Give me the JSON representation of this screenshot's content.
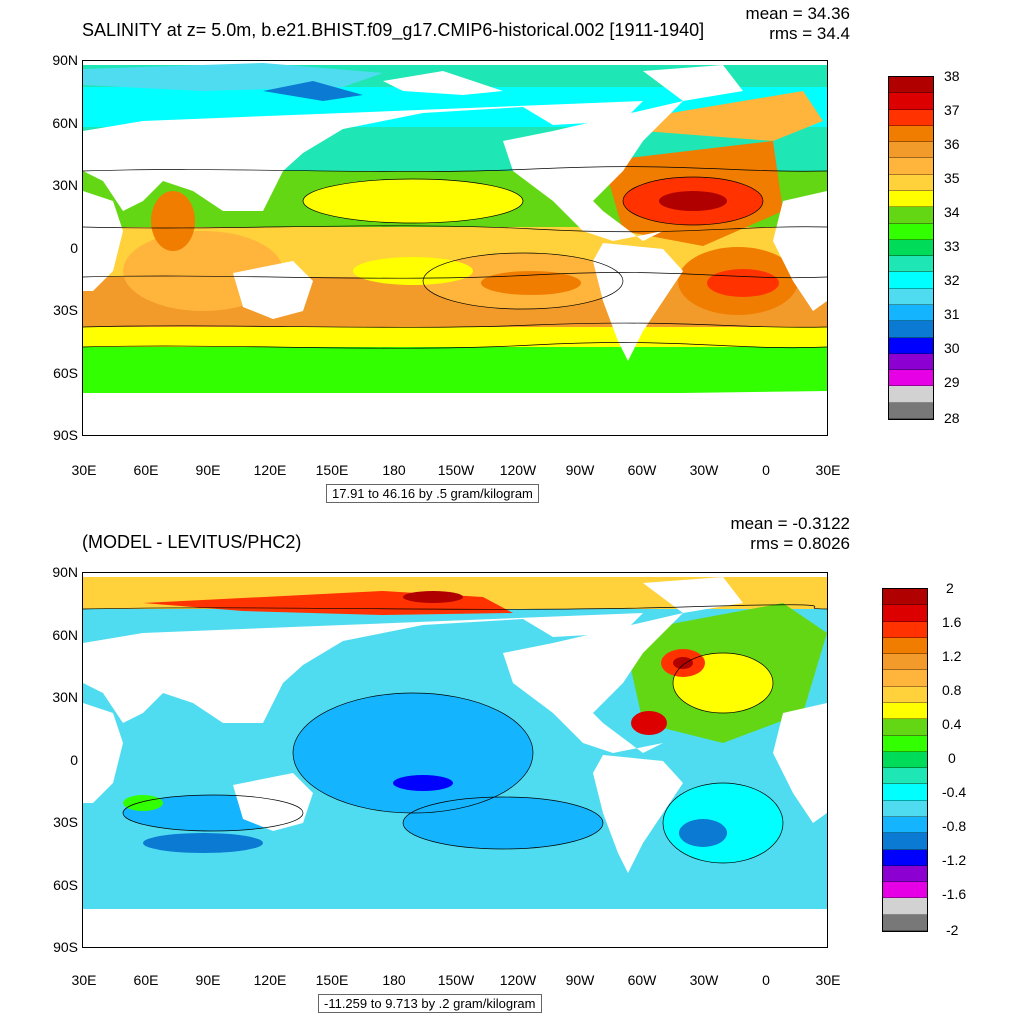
{
  "panels": [
    {
      "id": "top",
      "title": "SALINITY at z=   5.0m, b.e21.BHIST.f09_g17.CMIP6-historical.002 [1911-1940]",
      "stats": {
        "mean": "mean = 34.36",
        "rms": "rms = 34.4"
      },
      "info": "17.91 to 46.16 by .5 gram/kilogram",
      "y_ticks": [
        "90N",
        "60N",
        "30N",
        "0",
        "30S",
        "60S",
        "90S"
      ],
      "x_ticks": [
        "30E",
        "60E",
        "90E",
        "120E",
        "150E",
        "180",
        "150W",
        "120W",
        "90W",
        "60W",
        "30W",
        "0",
        "30E"
      ],
      "colorbar": {
        "labels": [
          "38",
          "37",
          "36",
          "35",
          "34",
          "33",
          "32",
          "31",
          "30",
          "29",
          "28"
        ],
        "colors": [
          "#b00000",
          "#dc0000",
          "#ff3200",
          "#f07d00",
          "#f29b2a",
          "#ffb43c",
          "#ffd23c",
          "#ffff00",
          "#64d714",
          "#32ff00",
          "#00dc5a",
          "#1ee6b4",
          "#00ffff",
          "#50dcf0",
          "#14b4ff",
          "#0a7ad2",
          "#0000ff",
          "#8c00d2",
          "#e600e6",
          "#d2d2d2",
          "#787878"
        ]
      }
    },
    {
      "id": "bottom",
      "title": "(MODEL - LEVITUS/PHC2)",
      "stats": {
        "mean": "mean = -0.3122",
        "rms": "rms = 0.8026"
      },
      "info": "-11.259 to 9.713 by .2 gram/kilogram",
      "y_ticks": [
        "90N",
        "60N",
        "30N",
        "0",
        "30S",
        "60S",
        "90S"
      ],
      "x_ticks": [
        "30E",
        "60E",
        "90E",
        "120E",
        "150E",
        "180",
        "150W",
        "120W",
        "90W",
        "60W",
        "30W",
        "0",
        "30E"
      ],
      "colorbar": {
        "labels": [
          "2",
          "1.6",
          "1.2",
          "0.8",
          "0.4",
          "0",
          "-0.4",
          "-0.8",
          "-1.2",
          "-1.6",
          "-2"
        ],
        "colors": [
          "#b00000",
          "#dc0000",
          "#ff3200",
          "#f07d00",
          "#f29b2a",
          "#ffb43c",
          "#ffd23c",
          "#ffff00",
          "#64d714",
          "#32ff00",
          "#00dc5a",
          "#1ee6b4",
          "#00ffff",
          "#50dcf0",
          "#14b4ff",
          "#0a7ad2",
          "#0000ff",
          "#8c00d2",
          "#e600e6",
          "#d2d2d2",
          "#787878"
        ]
      }
    }
  ]
}
